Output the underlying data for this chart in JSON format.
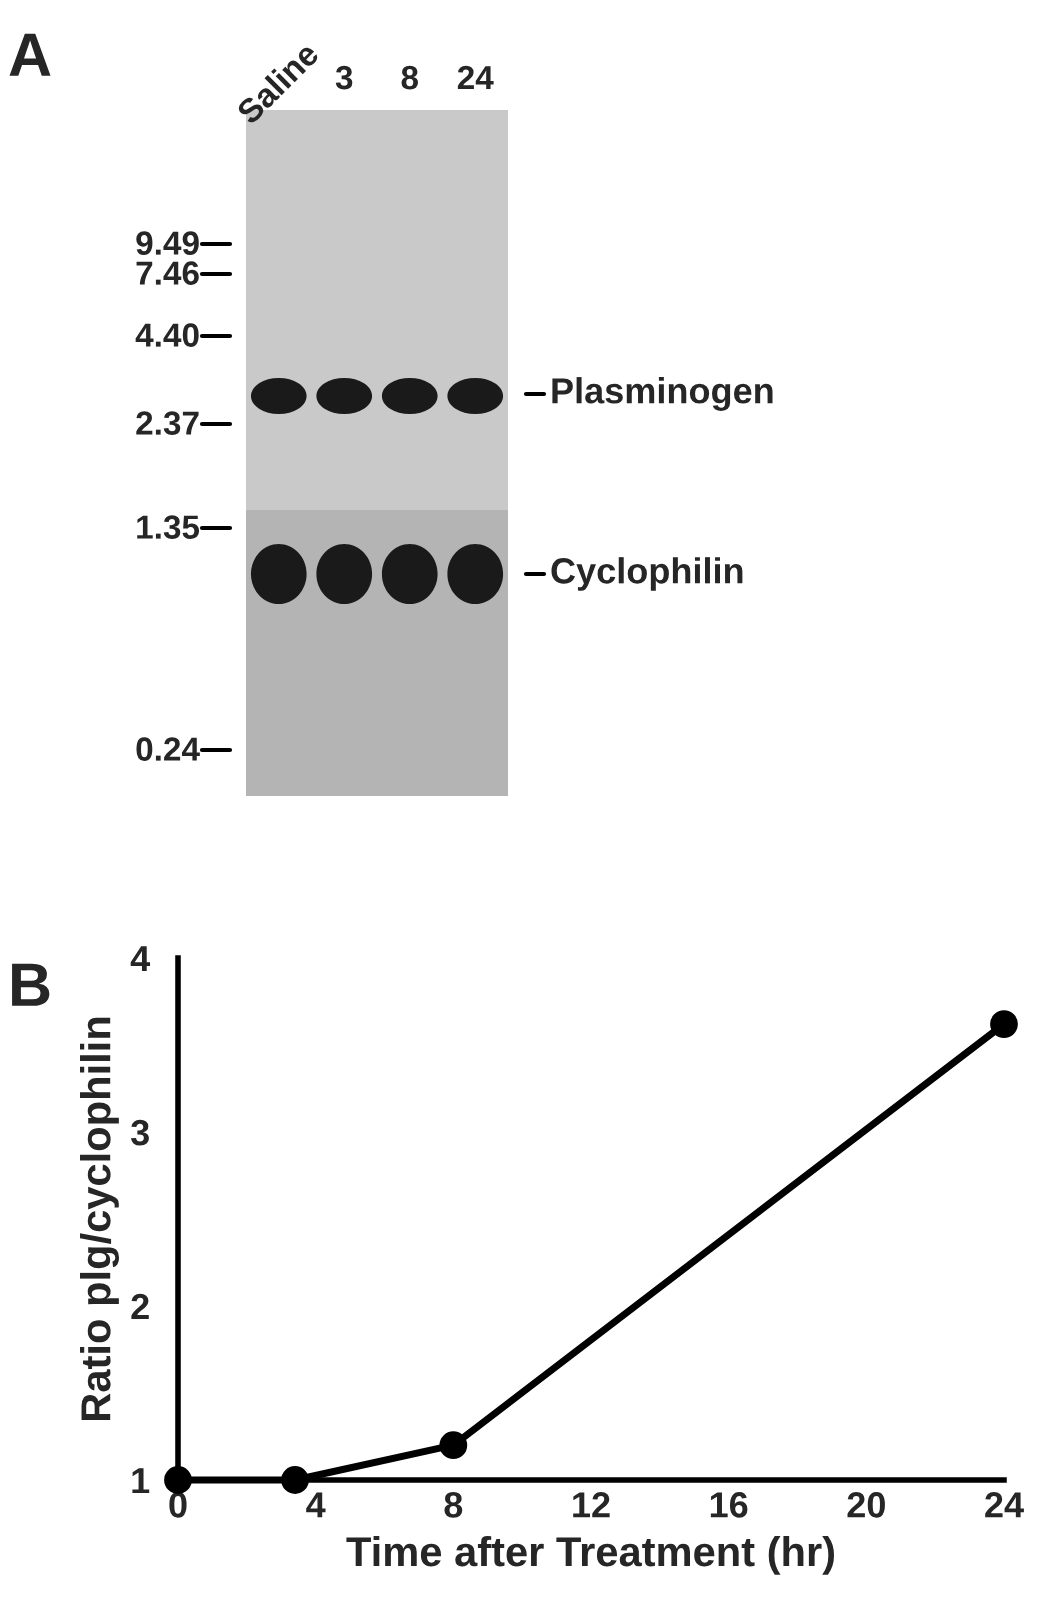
{
  "chart_data": [
    {
      "type": "other",
      "title": "A",
      "categories": [
        "Saline",
        "3",
        "8",
        "24"
      ],
      "annotations": [
        "9.49",
        "7.46",
        "4.40",
        "2.37",
        "1.35",
        "0.24",
        "Plasminogen",
        "Cyclophilin"
      ]
    },
    {
      "type": "line",
      "title": "B",
      "xlabel": "Time after Treatment (hr)",
      "ylabel": "Ratio plg/cyclophilin",
      "x": [
        0,
        3.4,
        8,
        24
      ],
      "series": [
        {
          "color": "#000000",
          "values": [
            1.0,
            1.0,
            1.2,
            3.62
          ]
        }
      ],
      "xlim": [
        0,
        24
      ],
      "ylim": [
        1,
        4
      ],
      "xticks": [
        0,
        4,
        8,
        12,
        16,
        20,
        24
      ],
      "yticks": [
        1,
        2,
        3,
        4
      ],
      "grid": false,
      "legend": false,
      "marker": "circle",
      "line_style": "solid"
    }
  ]
}
